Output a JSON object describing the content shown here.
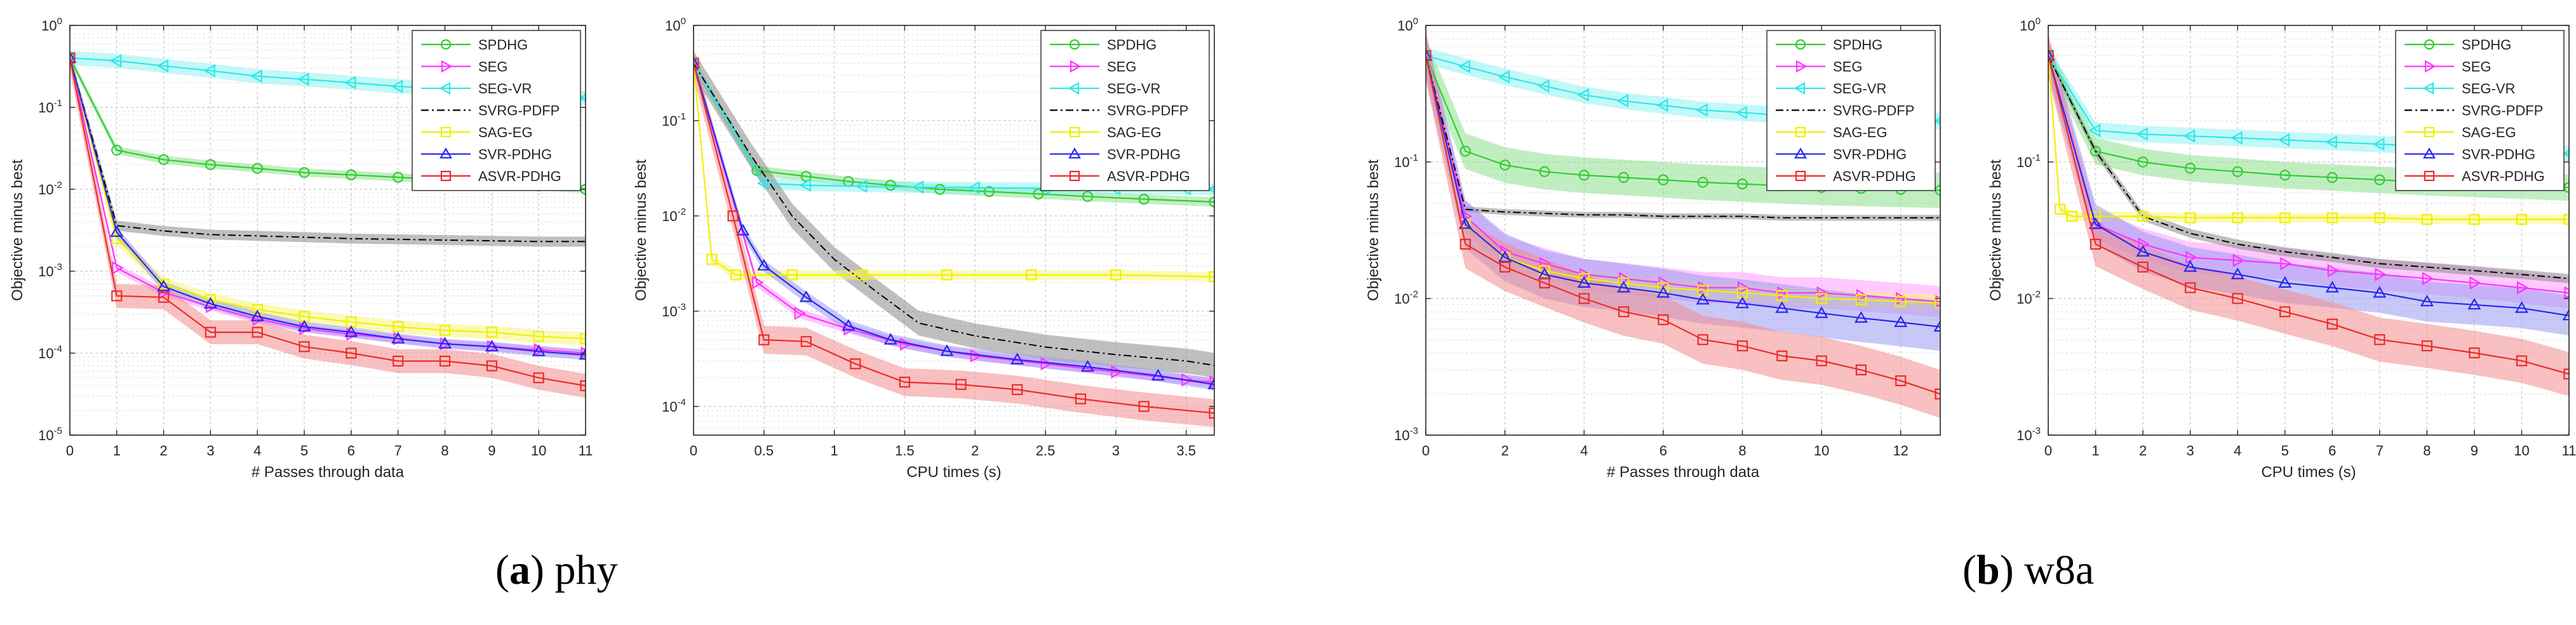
{
  "figure": {
    "captions": [
      {
        "label": "a",
        "name": "phy"
      },
      {
        "label": "b",
        "name": "w8a"
      }
    ]
  },
  "legend_entries": [
    "SPDHG",
    "SEG",
    "SEG-VR",
    "SVRG-PDFP",
    "SAG-EG",
    "SVR-PDHG",
    "ASVR-PDHG"
  ],
  "series_styles": {
    "SPDHG": {
      "color": "#33cc33",
      "band": "#8ee08e",
      "marker": "circle",
      "dash": "solid"
    },
    "SEG": {
      "color": "#ff33ff",
      "band": "#ff9cff",
      "marker": "triangle-right",
      "dash": "solid"
    },
    "SEG-VR": {
      "color": "#2ee8e8",
      "band": "#8ff2f2",
      "marker": "triangle-left",
      "dash": "solid"
    },
    "SVRG-PDFP": {
      "color": "#000000",
      "band": "#8a8a8a",
      "marker": "none",
      "dash": "dashdot"
    },
    "SAG-EG": {
      "color": "#f0f000",
      "band": "#f6f67a",
      "marker": "square",
      "dash": "solid"
    },
    "SVR-PDHG": {
      "color": "#2828ee",
      "band": "#9a9af2",
      "marker": "triangle-up",
      "dash": "solid"
    },
    "ASVR-PDHG": {
      "color": "#ee2b2b",
      "band": "#f28c8c",
      "marker": "square",
      "dash": "solid"
    }
  },
  "chart_data": [
    {
      "type": "line",
      "yscale": "log",
      "xlabel": "# Passes through data",
      "ylabel": "Objective minus best",
      "xlim": [
        0,
        11
      ],
      "ylim": [
        1e-05,
        1
      ],
      "xticks": [
        0,
        1,
        2,
        3,
        4,
        5,
        6,
        7,
        8,
        9,
        10,
        11
      ],
      "yticks": [
        1e-05,
        0.0001,
        0.001,
        0.01,
        0.1,
        1
      ],
      "ytick_labels": [
        "10^-5",
        "10^-4",
        "10^-3",
        "10^-2",
        "10^-1",
        "10^0"
      ],
      "grid": true,
      "legend": "top-right",
      "series": [
        {
          "name": "SPDHG",
          "x": [
            0,
            1,
            2,
            3,
            4,
            5,
            6,
            7,
            8,
            9,
            10,
            11
          ],
          "y": [
            0.4,
            0.03,
            0.023,
            0.02,
            0.018,
            0.016,
            0.015,
            0.014,
            0.013,
            0.012,
            0.011,
            0.01
          ],
          "band": 1.12
        },
        {
          "name": "SEG",
          "x": [
            0,
            1,
            2,
            3,
            4,
            5,
            6,
            7,
            8,
            9,
            10,
            11
          ],
          "y": [
            0.4,
            0.0011,
            0.00055,
            0.00037,
            0.00026,
            0.0002,
            0.00017,
            0.00015,
            0.00013,
            0.00012,
            0.00011,
            0.0001
          ],
          "band": 1.12
        },
        {
          "name": "SEG-VR",
          "x": [
            0,
            1,
            2,
            3,
            4,
            5,
            6,
            7,
            8,
            9,
            10,
            11
          ],
          "y": [
            0.4,
            0.37,
            0.32,
            0.28,
            0.24,
            0.22,
            0.2,
            0.18,
            0.17,
            0.16,
            0.145,
            0.13
          ],
          "band": 1.22
        },
        {
          "name": "SVRG-PDFP",
          "x": [
            0,
            1,
            2,
            3,
            4,
            5,
            6,
            7,
            8,
            9,
            10,
            11
          ],
          "y": [
            0.4,
            0.0036,
            0.0031,
            0.0028,
            0.0027,
            0.0026,
            0.0025,
            0.00245,
            0.0024,
            0.00235,
            0.0023,
            0.0023
          ],
          "band": 1.15
        },
        {
          "name": "SAG-EG",
          "x": [
            0,
            1,
            2,
            3,
            4,
            5,
            6,
            7,
            8,
            9,
            10,
            11
          ],
          "y": [
            0.4,
            0.0025,
            0.0007,
            0.00045,
            0.00034,
            0.00028,
            0.00024,
            0.00021,
            0.00019,
            0.00018,
            0.00016,
            0.00015
          ],
          "band": 1.2
        },
        {
          "name": "SVR-PDHG",
          "x": [
            0,
            1,
            2,
            3,
            4,
            5,
            6,
            7,
            8,
            9,
            10,
            11
          ],
          "y": [
            0.4,
            0.003,
            0.00065,
            0.0004,
            0.00028,
            0.00021,
            0.00018,
            0.00015,
            0.00013,
            0.00012,
            0.000105,
            9.5e-05
          ],
          "band": 1.15
        },
        {
          "name": "ASVR-PDHG",
          "x": [
            0,
            1,
            2,
            3,
            4,
            5,
            6,
            7,
            8,
            9,
            10,
            11
          ],
          "y": [
            0.4,
            0.0005,
            0.00048,
            0.00018,
            0.00018,
            0.00012,
            0.0001,
            8e-05,
            8e-05,
            7e-05,
            5e-05,
            4e-05
          ],
          "band": 1.4
        }
      ]
    },
    {
      "type": "line",
      "yscale": "log",
      "xlabel": "CPU times (s)",
      "ylabel": "Objective minus best",
      "xlim": [
        0,
        3.7
      ],
      "ylim": [
        5e-05,
        1
      ],
      "xticks": [
        0,
        0.5,
        1,
        1.5,
        2,
        2.5,
        3,
        3.5
      ],
      "yticks": [
        0.0001,
        0.001,
        0.01,
        0.1,
        1
      ],
      "ytick_labels": [
        "10^-4",
        "10^-3",
        "10^-2",
        "10^-1",
        "10^0"
      ],
      "grid": true,
      "legend": "top-right",
      "series": [
        {
          "name": "SPDHG",
          "x": [
            0,
            0.45,
            0.8,
            1.1,
            1.4,
            1.75,
            2.1,
            2.45,
            2.8,
            3.2,
            3.7
          ],
          "y": [
            0.4,
            0.03,
            0.026,
            0.023,
            0.021,
            0.019,
            0.018,
            0.017,
            0.016,
            0.015,
            0.014
          ],
          "band": 1.12
        },
        {
          "name": "SEG",
          "x": [
            0,
            0.45,
            0.75,
            1.1,
            1.5,
            2.0,
            2.5,
            3.0,
            3.5,
            3.7
          ],
          "y": [
            0.4,
            0.002,
            0.00095,
            0.00065,
            0.00045,
            0.00034,
            0.00028,
            0.00023,
            0.00019,
            0.00018
          ],
          "band": 1.12
        },
        {
          "name": "SEG-VR",
          "x": [
            0,
            0.5,
            0.8,
            1.2,
            1.6,
            2.0,
            2.5,
            3.0,
            3.5,
            3.7
          ],
          "y": [
            0.4,
            0.022,
            0.021,
            0.0205,
            0.02,
            0.0197,
            0.0195,
            0.0193,
            0.0192,
            0.0191
          ],
          "band": 1.15
        },
        {
          "name": "SVRG-PDFP",
          "x": [
            0,
            0.4,
            0.7,
            1.0,
            1.3,
            1.6,
            2.0,
            2.5,
            3.0,
            3.5,
            3.7
          ],
          "y": [
            0.4,
            0.045,
            0.01,
            0.0035,
            0.0016,
            0.00075,
            0.00055,
            0.00042,
            0.00035,
            0.0003,
            0.00027
          ],
          "band": 1.35
        },
        {
          "name": "SAG-EG",
          "x": [
            0,
            0.13,
            0.3,
            0.7,
            1.2,
            1.8,
            2.4,
            3.0,
            3.7
          ],
          "y": [
            0.4,
            0.0035,
            0.0024,
            0.0024,
            0.0024,
            0.0024,
            0.0024,
            0.0024,
            0.0023
          ],
          "band": 1.12
        },
        {
          "name": "SVR-PDHG",
          "x": [
            0,
            0.35,
            0.5,
            0.8,
            1.1,
            1.4,
            1.8,
            2.3,
            2.8,
            3.3,
            3.7
          ],
          "y": [
            0.4,
            0.007,
            0.003,
            0.0014,
            0.0007,
            0.0005,
            0.00038,
            0.00031,
            0.00026,
            0.00021,
            0.00017
          ],
          "band": 1.15
        },
        {
          "name": "ASVR-PDHG",
          "x": [
            0,
            0.28,
            0.5,
            0.8,
            1.15,
            1.5,
            1.9,
            2.3,
            2.75,
            3.2,
            3.7
          ],
          "y": [
            0.4,
            0.01,
            0.0005,
            0.00048,
            0.00028,
            0.00018,
            0.00017,
            0.00015,
            0.00012,
            0.0001,
            8.5e-05
          ],
          "band": 1.4
        }
      ]
    },
    {
      "type": "line",
      "yscale": "log",
      "xlabel": "# Passes through data",
      "ylabel": "Objective minus best",
      "xlim": [
        0,
        13
      ],
      "ylim": [
        0.001,
        1
      ],
      "xticks": [
        0,
        2,
        4,
        6,
        8,
        10,
        12
      ],
      "yticks": [
        0.001,
        0.01,
        0.1,
        1
      ],
      "ytick_labels": [
        "10^-3",
        "10^-2",
        "10^-1",
        "10^0"
      ],
      "grid": true,
      "legend": "top-right",
      "series": [
        {
          "name": "SPDHG",
          "x": [
            0,
            1,
            2,
            3,
            4,
            5,
            6,
            7,
            8,
            9,
            10,
            11,
            12,
            13
          ],
          "y": [
            0.6,
            0.12,
            0.095,
            0.085,
            0.08,
            0.077,
            0.074,
            0.071,
            0.069,
            0.067,
            0.065,
            0.064,
            0.063,
            0.062
          ],
          "band": 1.35
        },
        {
          "name": "SEG",
          "x": [
            0,
            1,
            2,
            3,
            4,
            5,
            6,
            7,
            8,
            9,
            10,
            11,
            12,
            13
          ],
          "y": [
            0.6,
            0.04,
            0.022,
            0.018,
            0.015,
            0.014,
            0.013,
            0.012,
            0.012,
            0.011,
            0.011,
            0.0105,
            0.01,
            0.0095
          ],
          "band": 1.3
        },
        {
          "name": "SEG-VR",
          "x": [
            0,
            1,
            2,
            3,
            4,
            5,
            6,
            7,
            8,
            9,
            10,
            11,
            12,
            13
          ],
          "y": [
            0.6,
            0.5,
            0.42,
            0.36,
            0.31,
            0.28,
            0.26,
            0.24,
            0.23,
            0.22,
            0.21,
            0.21,
            0.2,
            0.2
          ],
          "band": 1.15
        },
        {
          "name": "SVRG-PDFP",
          "x": [
            0,
            1,
            2,
            3,
            4,
            5,
            6,
            7,
            8,
            9,
            10,
            11,
            12,
            13
          ],
          "y": [
            0.6,
            0.045,
            0.043,
            0.042,
            0.041,
            0.041,
            0.04,
            0.04,
            0.04,
            0.039,
            0.039,
            0.039,
            0.039,
            0.039
          ],
          "band": 1.05
        },
        {
          "name": "SAG-EG",
          "x": [
            0,
            1,
            2,
            3,
            4,
            5,
            6,
            7,
            8,
            9,
            10,
            11,
            12,
            13
          ],
          "y": [
            0.6,
            0.035,
            0.02,
            0.016,
            0.014,
            0.013,
            0.012,
            0.0115,
            0.011,
            0.0105,
            0.01,
            0.0098,
            0.0095,
            0.0093
          ],
          "band": 1.15
        },
        {
          "name": "SVR-PDHG",
          "x": [
            0,
            1,
            2,
            3,
            4,
            5,
            6,
            7,
            8,
            9,
            10,
            11,
            12,
            13
          ],
          "y": [
            0.6,
            0.035,
            0.02,
            0.015,
            0.013,
            0.012,
            0.011,
            0.0098,
            0.0092,
            0.0085,
            0.0078,
            0.0072,
            0.0067,
            0.0062
          ],
          "band": 1.5
        },
        {
          "name": "ASVR-PDHG",
          "x": [
            0,
            1,
            2,
            3,
            4,
            5,
            6,
            7,
            8,
            9,
            10,
            11,
            12,
            13
          ],
          "y": [
            0.6,
            0.025,
            0.017,
            0.013,
            0.01,
            0.008,
            0.007,
            0.005,
            0.0045,
            0.0038,
            0.0035,
            0.003,
            0.0025,
            0.002
          ],
          "band": 1.5
        }
      ]
    },
    {
      "type": "line",
      "yscale": "log",
      "xlabel": "CPU times (s)",
      "ylabel": "Objective minus best",
      "xlim": [
        0,
        11
      ],
      "ylim": [
        0.001,
        1
      ],
      "xticks": [
        0,
        1,
        2,
        3,
        4,
        5,
        6,
        7,
        8,
        9,
        10,
        11
      ],
      "yticks": [
        0.001,
        0.01,
        0.1,
        1
      ],
      "ytick_labels": [
        "10^-3",
        "10^-2",
        "10^-1",
        "10^0"
      ],
      "grid": true,
      "legend": "top-right",
      "series": [
        {
          "name": "SPDHG",
          "x": [
            0,
            1,
            2,
            3,
            4,
            5,
            6,
            7,
            8,
            9,
            10,
            11
          ],
          "y": [
            0.6,
            0.12,
            0.1,
            0.09,
            0.085,
            0.08,
            0.077,
            0.074,
            0.071,
            0.069,
            0.067,
            0.065
          ],
          "band": 1.25
        },
        {
          "name": "SEG",
          "x": [
            0,
            1,
            2,
            3,
            4,
            5,
            6,
            7,
            8,
            9,
            10,
            11
          ],
          "y": [
            0.6,
            0.035,
            0.025,
            0.02,
            0.019,
            0.018,
            0.016,
            0.015,
            0.014,
            0.013,
            0.012,
            0.011
          ],
          "band": 1.3
        },
        {
          "name": "SEG-VR",
          "x": [
            0,
            1,
            2,
            3,
            4,
            5,
            6,
            7,
            8,
            9,
            10,
            11
          ],
          "y": [
            0.6,
            0.17,
            0.16,
            0.155,
            0.15,
            0.145,
            0.14,
            0.135,
            0.13,
            0.125,
            0.12,
            0.115
          ],
          "band": 1.15
        },
        {
          "name": "SVRG-PDFP",
          "x": [
            0,
            1,
            2,
            3,
            4,
            5,
            6,
            7,
            8,
            9,
            10,
            11
          ],
          "y": [
            0.6,
            0.12,
            0.04,
            0.03,
            0.025,
            0.022,
            0.02,
            0.018,
            0.017,
            0.016,
            0.015,
            0.014
          ],
          "band": 1.08
        },
        {
          "name": "SAG-EG",
          "x": [
            0,
            0.25,
            0.5,
            1,
            2,
            3,
            4,
            5,
            6,
            7,
            8,
            9,
            10,
            11
          ],
          "y": [
            0.6,
            0.045,
            0.04,
            0.04,
            0.04,
            0.039,
            0.039,
            0.039,
            0.039,
            0.039,
            0.038,
            0.038,
            0.038,
            0.038
          ],
          "band": 1.08
        },
        {
          "name": "SVR-PDHG",
          "x": [
            0,
            1,
            2,
            3,
            4,
            5,
            6,
            7,
            8,
            9,
            10,
            11
          ],
          "y": [
            0.6,
            0.035,
            0.022,
            0.017,
            0.015,
            0.013,
            0.012,
            0.011,
            0.0095,
            0.009,
            0.0085,
            0.0075
          ],
          "band": 1.4
        },
        {
          "name": "ASVR-PDHG",
          "x": [
            0,
            1,
            2,
            3,
            4,
            5,
            6,
            7,
            8,
            9,
            10,
            11
          ],
          "y": [
            0.6,
            0.025,
            0.017,
            0.012,
            0.01,
            0.008,
            0.0065,
            0.005,
            0.0045,
            0.004,
            0.0035,
            0.0028
          ],
          "band": 1.45
        }
      ]
    }
  ]
}
